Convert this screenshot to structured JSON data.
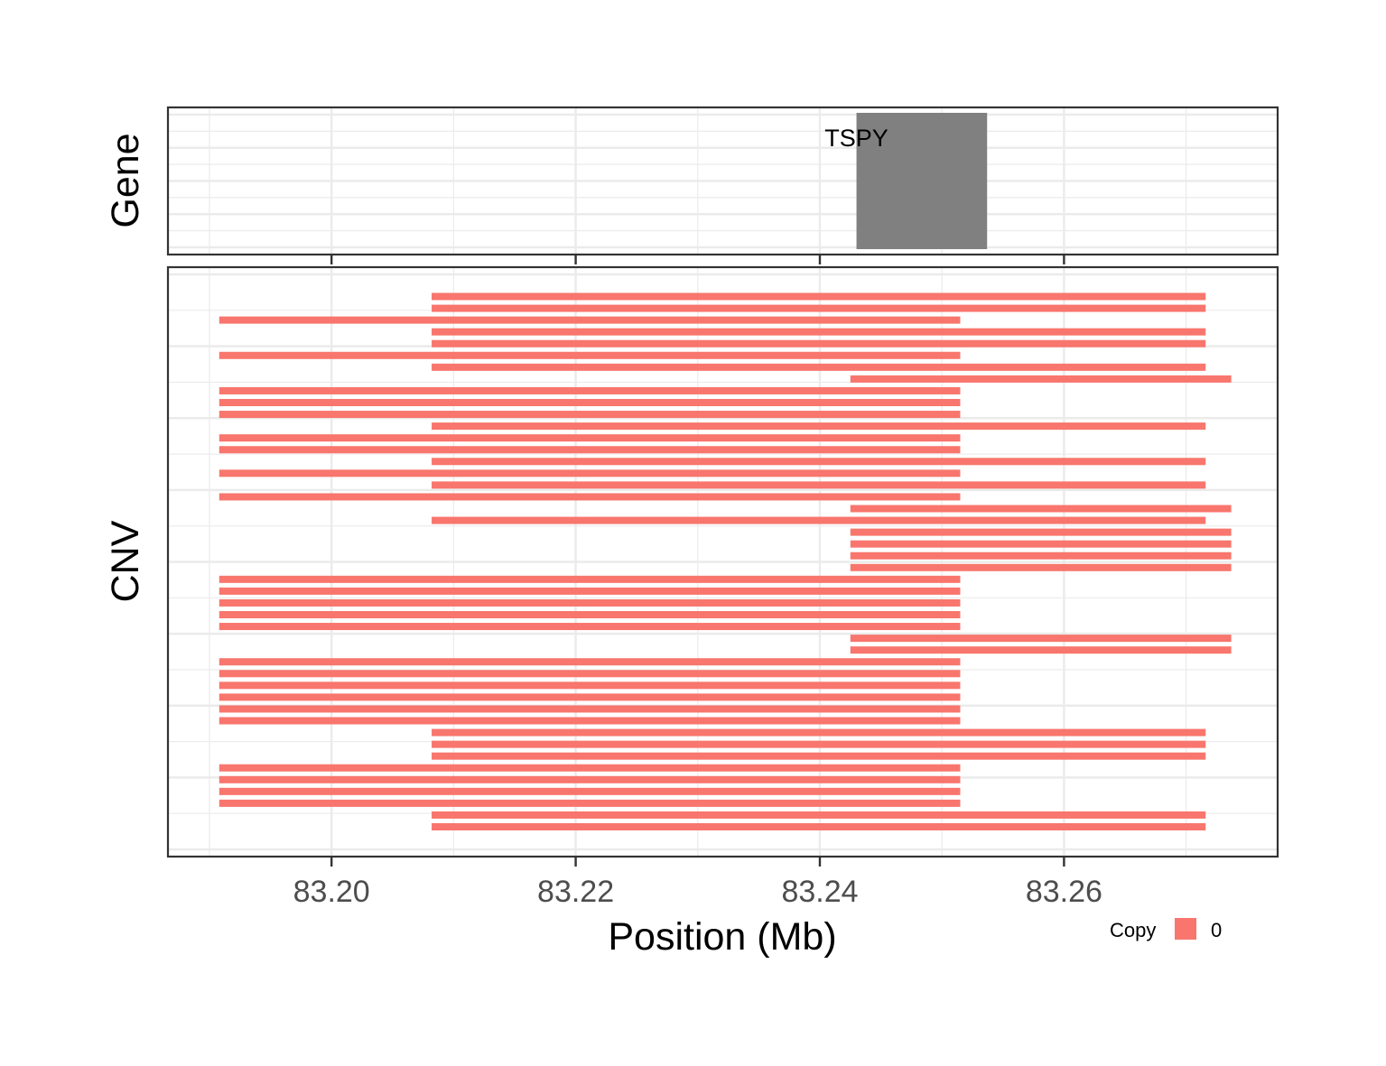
{
  "chart_data": {
    "type": "genomic-track",
    "xlabel": "Position (Mb)",
    "xlim": [
      83.1866,
      83.2775
    ],
    "x_ticks": [
      83.2,
      83.22,
      83.24,
      83.26
    ],
    "x_tick_labels": [
      "83.20",
      "83.22",
      "83.24",
      "83.26"
    ],
    "grid": true,
    "panels": [
      {
        "name": "gene",
        "ylabel": "Gene",
        "genes": [
          {
            "label": "TSPY",
            "start": 83.243,
            "end": 83.2537,
            "color": "#808080"
          }
        ]
      },
      {
        "name": "cnv",
        "ylabel": "CNV",
        "color_by": "Copy",
        "segments": [
          {
            "row": 1,
            "start": 83.2082,
            "end": 83.2716,
            "copy": "0"
          },
          {
            "row": 2,
            "start": 83.2082,
            "end": 83.2716,
            "copy": "0"
          },
          {
            "row": 3,
            "start": 83.1908,
            "end": 83.2515,
            "copy": "0"
          },
          {
            "row": 4,
            "start": 83.2082,
            "end": 83.2716,
            "copy": "0"
          },
          {
            "row": 5,
            "start": 83.2082,
            "end": 83.2716,
            "copy": "0"
          },
          {
            "row": 6,
            "start": 83.1908,
            "end": 83.2515,
            "copy": "0"
          },
          {
            "row": 7,
            "start": 83.2082,
            "end": 83.2716,
            "copy": "0"
          },
          {
            "row": 8,
            "start": 83.2425,
            "end": 83.2737,
            "copy": "0"
          },
          {
            "row": 9,
            "start": 83.1908,
            "end": 83.2515,
            "copy": "0"
          },
          {
            "row": 10,
            "start": 83.1908,
            "end": 83.2515,
            "copy": "0"
          },
          {
            "row": 11,
            "start": 83.1908,
            "end": 83.2515,
            "copy": "0"
          },
          {
            "row": 12,
            "start": 83.2082,
            "end": 83.2716,
            "copy": "0"
          },
          {
            "row": 13,
            "start": 83.1908,
            "end": 83.2515,
            "copy": "0"
          },
          {
            "row": 14,
            "start": 83.1908,
            "end": 83.2515,
            "copy": "0"
          },
          {
            "row": 15,
            "start": 83.2082,
            "end": 83.2716,
            "copy": "0"
          },
          {
            "row": 16,
            "start": 83.1908,
            "end": 83.2515,
            "copy": "0"
          },
          {
            "row": 17,
            "start": 83.2082,
            "end": 83.2716,
            "copy": "0"
          },
          {
            "row": 18,
            "start": 83.1908,
            "end": 83.2515,
            "copy": "0"
          },
          {
            "row": 19,
            "start": 83.2425,
            "end": 83.2737,
            "copy": "0"
          },
          {
            "row": 20,
            "start": 83.2082,
            "end": 83.2716,
            "copy": "0"
          },
          {
            "row": 21,
            "start": 83.2425,
            "end": 83.2737,
            "copy": "0"
          },
          {
            "row": 22,
            "start": 83.2425,
            "end": 83.2737,
            "copy": "0"
          },
          {
            "row": 23,
            "start": 83.2425,
            "end": 83.2737,
            "copy": "0"
          },
          {
            "row": 24,
            "start": 83.2425,
            "end": 83.2737,
            "copy": "0"
          },
          {
            "row": 25,
            "start": 83.1908,
            "end": 83.2515,
            "copy": "0"
          },
          {
            "row": 26,
            "start": 83.1908,
            "end": 83.2515,
            "copy": "0"
          },
          {
            "row": 27,
            "start": 83.1908,
            "end": 83.2515,
            "copy": "0"
          },
          {
            "row": 28,
            "start": 83.1908,
            "end": 83.2515,
            "copy": "0"
          },
          {
            "row": 29,
            "start": 83.1908,
            "end": 83.2515,
            "copy": "0"
          },
          {
            "row": 30,
            "start": 83.2425,
            "end": 83.2737,
            "copy": "0"
          },
          {
            "row": 31,
            "start": 83.2425,
            "end": 83.2737,
            "copy": "0"
          },
          {
            "row": 32,
            "start": 83.1908,
            "end": 83.2515,
            "copy": "0"
          },
          {
            "row": 33,
            "start": 83.1908,
            "end": 83.2515,
            "copy": "0"
          },
          {
            "row": 34,
            "start": 83.1908,
            "end": 83.2515,
            "copy": "0"
          },
          {
            "row": 35,
            "start": 83.1908,
            "end": 83.2515,
            "copy": "0"
          },
          {
            "row": 36,
            "start": 83.1908,
            "end": 83.2515,
            "copy": "0"
          },
          {
            "row": 37,
            "start": 83.1908,
            "end": 83.2515,
            "copy": "0"
          },
          {
            "row": 38,
            "start": 83.2082,
            "end": 83.2716,
            "copy": "0"
          },
          {
            "row": 39,
            "start": 83.2082,
            "end": 83.2716,
            "copy": "0"
          },
          {
            "row": 40,
            "start": 83.2082,
            "end": 83.2716,
            "copy": "0"
          },
          {
            "row": 41,
            "start": 83.1908,
            "end": 83.2515,
            "copy": "0"
          },
          {
            "row": 42,
            "start": 83.1908,
            "end": 83.2515,
            "copy": "0"
          },
          {
            "row": 43,
            "start": 83.1908,
            "end": 83.2515,
            "copy": "0"
          },
          {
            "row": 44,
            "start": 83.1908,
            "end": 83.2515,
            "copy": "0"
          },
          {
            "row": 45,
            "start": 83.2082,
            "end": 83.2716,
            "copy": "0"
          },
          {
            "row": 46,
            "start": 83.2082,
            "end": 83.2716,
            "copy": "0"
          }
        ]
      }
    ],
    "legend": {
      "title": "Copy",
      "position": "bottom-right",
      "entries": [
        {
          "label": "0",
          "color": "#F8766D"
        }
      ]
    }
  }
}
